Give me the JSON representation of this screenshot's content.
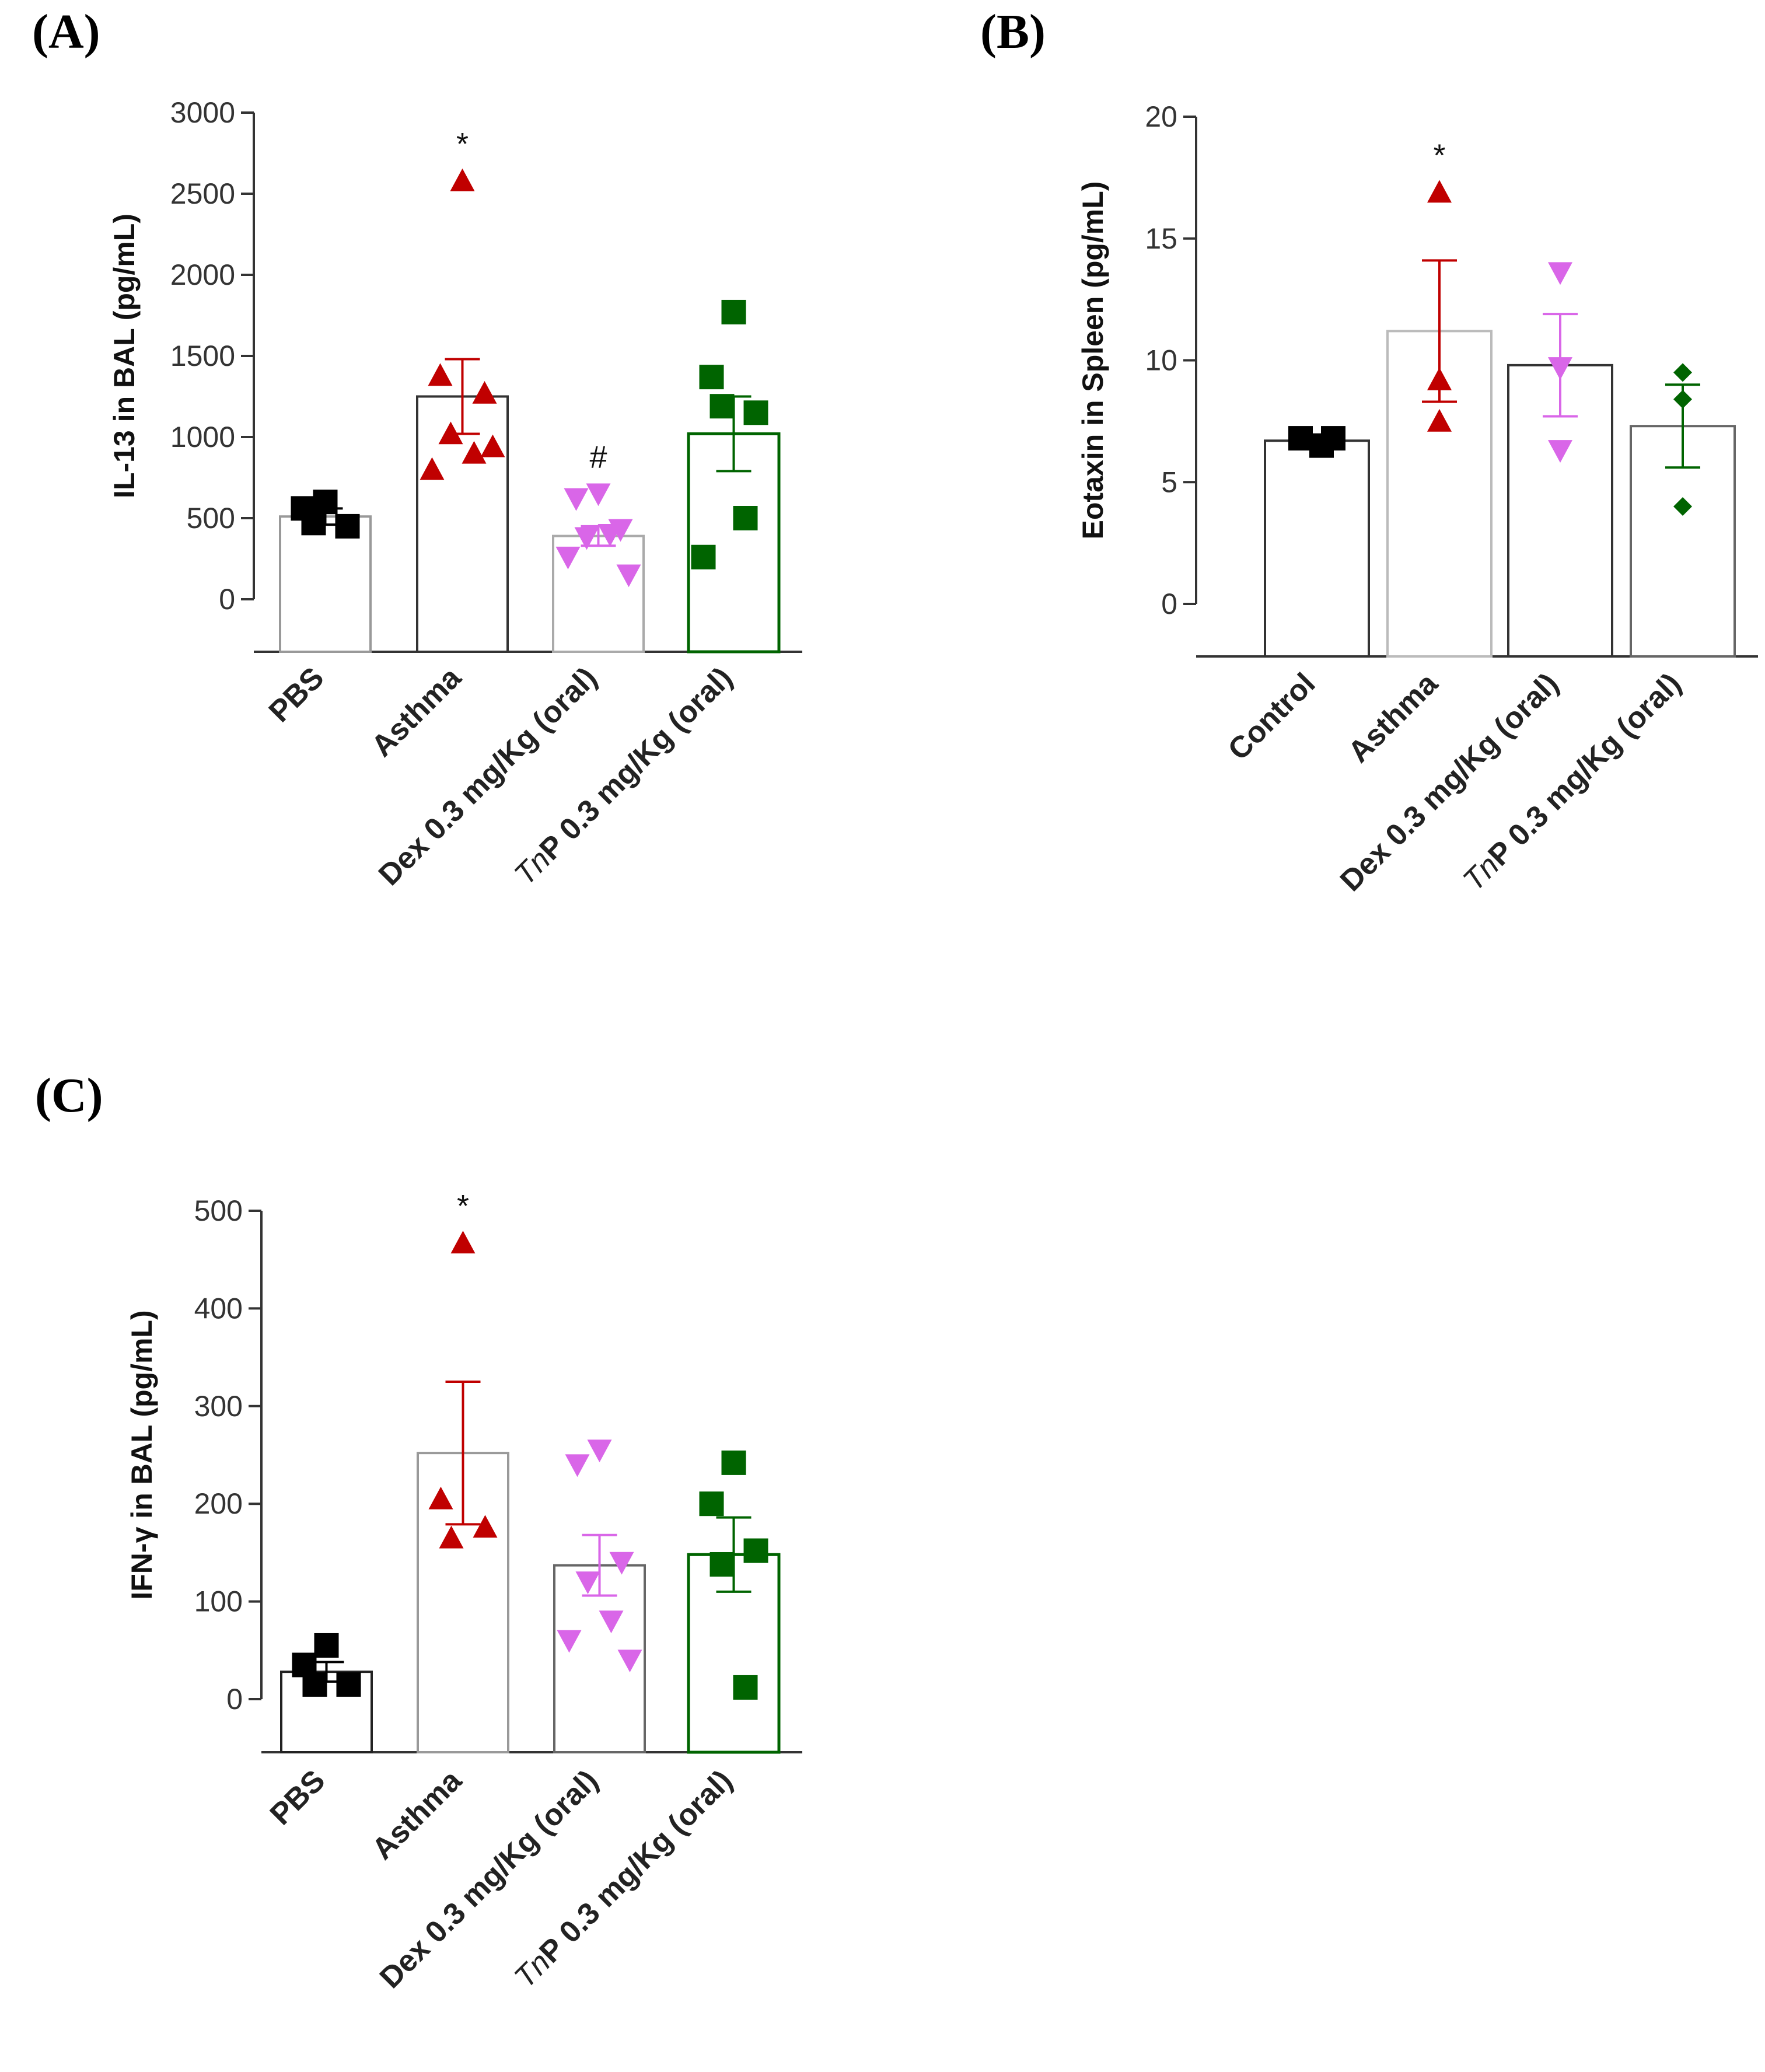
{
  "chart_data": [
    {
      "panel": "(A)",
      "type": "bar",
      "ylabel": "IL-13 in BAL  (pg/mL)",
      "ylim": [
        0,
        3000
      ],
      "yticks": [
        "0",
        "500",
        "1000",
        "1500",
        "2000",
        "2500",
        "3000"
      ],
      "categories": [
        {
          "prefix": "",
          "italic": "",
          "rest": "PBS"
        },
        {
          "prefix": "",
          "italic": "",
          "rest": "Asthma"
        },
        {
          "prefix": "",
          "italic": "",
          "rest": "Dex 0.3 mg/Kg (oral)"
        },
        {
          "prefix": "",
          "italic": "Tn",
          "rest": "P 0.3 mg/Kg (oral)"
        }
      ],
      "series": [
        {
          "name": "PBS",
          "mean": 510,
          "sem": 50,
          "points": [
            600,
            560,
            450,
            470
          ],
          "marker": "square",
          "color": "#000000",
          "bar_color": "#999999",
          "annotation": ""
        },
        {
          "name": "Asthma",
          "mean": 1250,
          "sem": 230,
          "points": [
            2580,
            1380,
            1270,
            1020,
            900,
            800,
            940
          ],
          "marker": "triangle-up",
          "color": "#c00000",
          "bar_color": "#333333",
          "annotation": "*"
        },
        {
          "name": "Dex 0.3 mg/Kg (oral)",
          "mean": 390,
          "sem": 60,
          "points": [
            650,
            620,
            430,
            380,
            400,
            260,
            150
          ],
          "marker": "triangle-down",
          "color": "#d966e8",
          "bar_color": "#aaaaaa",
          "annotation": "#"
        },
        {
          "name": "TnP 0.3 mg/Kg (oral)",
          "mean": 1020,
          "sem": 230,
          "points": [
            1770,
            1370,
            1150,
            1190,
            500,
            260
          ],
          "marker": "square",
          "color": "#006400",
          "bar_color": "#006400",
          "annotation": ""
        }
      ]
    },
    {
      "panel": "(B)",
      "type": "bar",
      "ylabel": "Eotaxin in Spleen (pg/mL)",
      "ylim": [
        0,
        20
      ],
      "yticks": [
        "0",
        "5",
        "10",
        "15",
        "20"
      ],
      "categories": [
        {
          "prefix": "",
          "italic": "",
          "rest": "Control"
        },
        {
          "prefix": "",
          "italic": "",
          "rest": "Asthma"
        },
        {
          "prefix": "",
          "italic": "",
          "rest": "Dex 0.3 mg/Kg (oral)"
        },
        {
          "prefix": "",
          "italic": "Tn",
          "rest": "P 0.3 mg/Kg (oral)"
        }
      ],
      "series": [
        {
          "name": "Control",
          "mean": 6.7,
          "sem": 0.15,
          "points": [
            6.8,
            6.5,
            6.8
          ],
          "marker": "square",
          "color": "#000000",
          "bar_color": "#333333",
          "annotation": ""
        },
        {
          "name": "Asthma",
          "mean": 11.2,
          "sem": 2.9,
          "points": [
            16.9,
            9.2,
            7.5
          ],
          "marker": "triangle-up",
          "color": "#c00000",
          "bar_color": "#bbbbbb",
          "annotation": "*"
        },
        {
          "name": "Dex 0.3 mg/Kg (oral)",
          "mean": 9.8,
          "sem": 2.1,
          "points": [
            13.6,
            9.7,
            6.3
          ],
          "marker": "triangle-down",
          "color": "#d966e8",
          "bar_color": "#333333",
          "annotation": ""
        },
        {
          "name": "TnP 0.3 mg/Kg (oral)",
          "mean": 7.3,
          "sem": 1.7,
          "points": [
            9.5,
            8.4,
            4.0
          ],
          "marker": "diamond",
          "color": "#006400",
          "bar_color": "#666666",
          "annotation": ""
        }
      ]
    },
    {
      "panel": "(C)",
      "type": "bar",
      "ylabel": "IFN-γ in BAL (pg/mL)",
      "ylim": [
        0,
        500
      ],
      "yticks": [
        "0",
        "100",
        "200",
        "300",
        "400",
        "500"
      ],
      "categories": [
        {
          "prefix": "",
          "italic": "",
          "rest": "PBS"
        },
        {
          "prefix": "",
          "italic": "",
          "rest": "Asthma"
        },
        {
          "prefix": "",
          "italic": "",
          "rest": "Dex 0.3 mg/Kg (oral)"
        },
        {
          "prefix": "",
          "italic": "Tn",
          "rest": "P 0.3 mg/Kg (oral)"
        }
      ],
      "series": [
        {
          "name": "PBS",
          "mean": 28,
          "sem": 10,
          "points": [
            55,
            35,
            15,
            15
          ],
          "marker": "square",
          "color": "#000000",
          "bar_color": "#222222",
          "annotation": ""
        },
        {
          "name": "Asthma",
          "mean": 252,
          "sem": 73,
          "points": [
            467,
            205,
            176,
            165
          ],
          "marker": "triangle-up",
          "color": "#c00000",
          "bar_color": "#999999",
          "annotation": "*"
        },
        {
          "name": "Dex 0.3 mg/Kg (oral)",
          "mean": 137,
          "sem": 31,
          "points": [
            255,
            240,
            140,
            120,
            80,
            60,
            40
          ],
          "marker": "triangle-down",
          "color": "#d966e8",
          "bar_color": "#666666",
          "annotation": ""
        },
        {
          "name": "TnP 0.3 mg/Kg (oral)",
          "mean": 148,
          "sem": 38,
          "points": [
            242,
            200,
            152,
            138,
            12
          ],
          "marker": "square",
          "color": "#006400",
          "bar_color": "#006400",
          "annotation": ""
        }
      ]
    }
  ]
}
